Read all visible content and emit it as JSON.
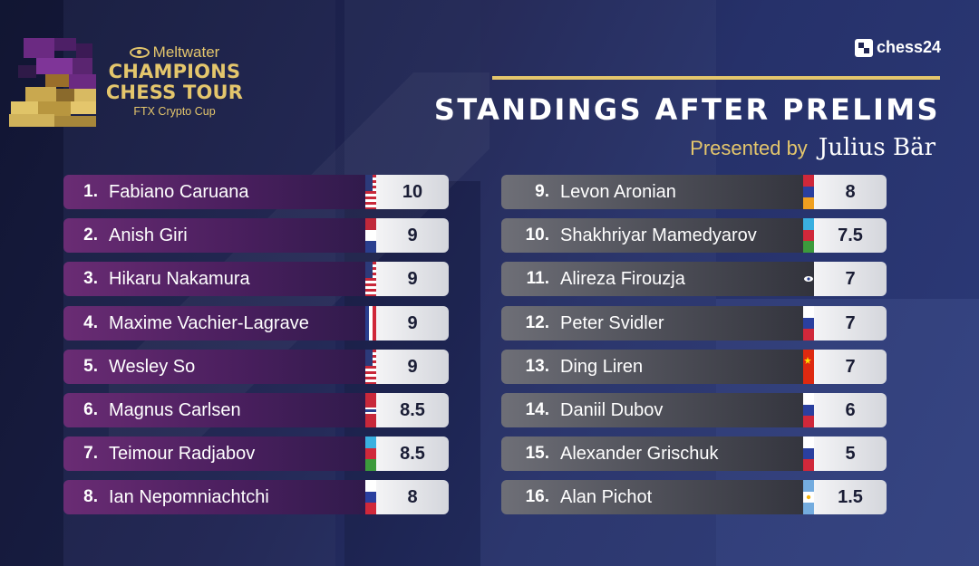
{
  "brand": {
    "company": "Meltwater",
    "line1": "CHAMPIONS",
    "line2": "CHESS TOUR",
    "event": "FTX Crypto Cup"
  },
  "partner": "chess24",
  "heading": {
    "title": "STANDINGS AFTER PRELIMS",
    "presented_by": "Presented by",
    "sponsor": "Julius Bär"
  },
  "colors": {
    "gold": "#e4c66c",
    "left_row": "#5a2468",
    "right_row": "#55565f"
  },
  "standings": [
    {
      "rank": "1.",
      "name": "Fabiano Caruana",
      "flag": "usa-flag-icon",
      "score": "10"
    },
    {
      "rank": "2.",
      "name": "Anish Giri",
      "flag": "netherlands-flag-icon",
      "score": "9"
    },
    {
      "rank": "3.",
      "name": "Hikaru Nakamura",
      "flag": "usa-flag-icon",
      "score": "9"
    },
    {
      "rank": "4.",
      "name": "Maxime Vachier-Lagrave",
      "flag": "france-flag-icon",
      "score": "9"
    },
    {
      "rank": "5.",
      "name": "Wesley So",
      "flag": "usa-flag-icon",
      "score": "9"
    },
    {
      "rank": "6.",
      "name": "Magnus Carlsen",
      "flag": "norway-flag-icon",
      "score": "8.5"
    },
    {
      "rank": "7.",
      "name": "Teimour Radjabov",
      "flag": "azerbaijan-flag-icon",
      "score": "8.5"
    },
    {
      "rank": "8.",
      "name": "Ian Nepomniachtchi",
      "flag": "russia-flag-icon",
      "score": "8"
    },
    {
      "rank": "9.",
      "name": "Levon Aronian",
      "flag": "armenia-flag-icon",
      "score": "8"
    },
    {
      "rank": "10.",
      "name": "Shakhriyar Mamedyarov",
      "flag": "azerbaijan-flag-icon",
      "score": "7.5"
    },
    {
      "rank": "11.",
      "name": "Alireza Firouzja",
      "flag": "fide-flag-icon",
      "score": "7"
    },
    {
      "rank": "12.",
      "name": "Peter Svidler",
      "flag": "russia-flag-icon",
      "score": "7"
    },
    {
      "rank": "13.",
      "name": "Ding Liren",
      "flag": "china-flag-icon",
      "score": "7"
    },
    {
      "rank": "14.",
      "name": "Daniil Dubov",
      "flag": "russia-flag-icon",
      "score": "6"
    },
    {
      "rank": "15.",
      "name": "Alexander Grischuk",
      "flag": "russia-flag-icon",
      "score": "5"
    },
    {
      "rank": "16.",
      "name": "Alan Pichot",
      "flag": "argentina-flag-icon",
      "score": "1.5"
    }
  ]
}
